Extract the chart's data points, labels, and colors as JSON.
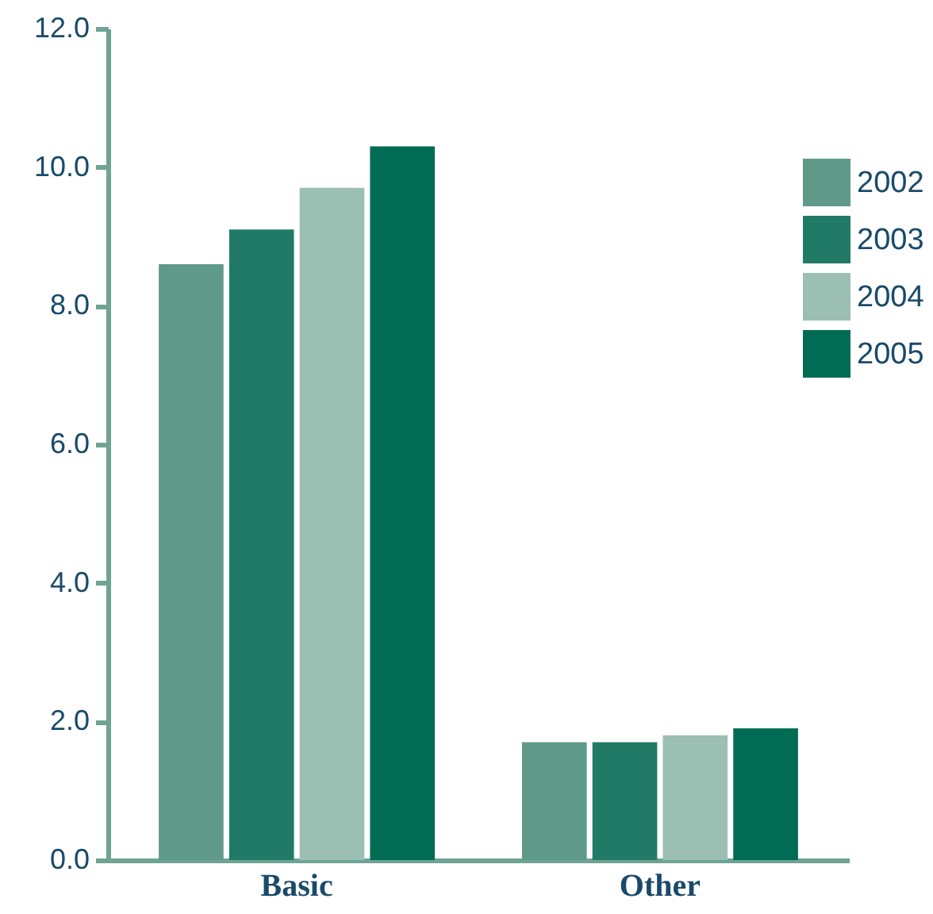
{
  "chart_data": {
    "type": "bar",
    "categories": [
      "Basic",
      "Other"
    ],
    "series": [
      {
        "name": "2002",
        "color": "#5e9a87",
        "values": [
          8.6,
          1.7
        ]
      },
      {
        "name": "2003",
        "color": "#217a66",
        "values": [
          9.1,
          1.7
        ]
      },
      {
        "name": "2004",
        "color": "#9bbfb2",
        "values": [
          9.7,
          1.8
        ]
      },
      {
        "name": "2005",
        "color": "#006c54",
        "values": [
          10.3,
          1.9
        ]
      }
    ],
    "ylim": [
      0,
      12
    ],
    "yticks": [
      {
        "value": 0,
        "label": "0.0"
      },
      {
        "value": 2,
        "label": "2.0"
      },
      {
        "value": 4,
        "label": "4.0"
      },
      {
        "value": 6,
        "label": "6.0"
      },
      {
        "value": 8,
        "label": "8.0"
      },
      {
        "value": 10,
        "label": "10.0"
      },
      {
        "value": 12,
        "label": "12.0"
      }
    ],
    "grid": false,
    "legend": "top right"
  }
}
